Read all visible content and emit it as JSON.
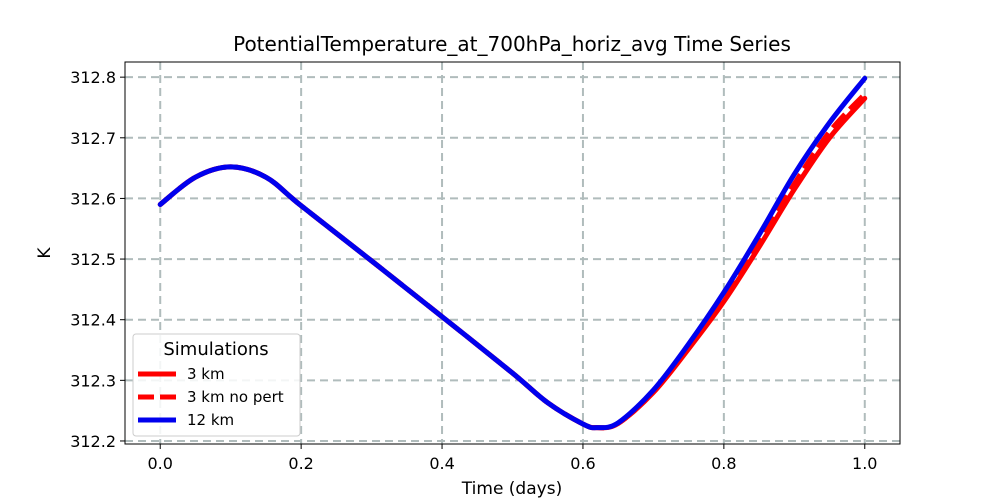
{
  "chart_data": {
    "type": "line",
    "title": "PotentialTemperature_at_700hPa_horiz_avg Time Series",
    "xlabel": "Time (days)",
    "ylabel": "K",
    "xlim": [
      -0.05,
      1.05
    ],
    "ylim": [
      312.195,
      312.825
    ],
    "xticks": [
      0.0,
      0.2,
      0.4,
      0.6,
      0.8,
      1.0
    ],
    "xtick_labels": [
      "0.0",
      "0.2",
      "0.4",
      "0.6",
      "0.8",
      "1.0"
    ],
    "yticks": [
      312.2,
      312.3,
      312.4,
      312.5,
      312.6,
      312.7,
      312.8
    ],
    "ytick_labels": [
      "312.2",
      "312.3",
      "312.4",
      "312.5",
      "312.6",
      "312.7",
      "312.8"
    ],
    "grid": true,
    "legend": {
      "title": "Simulations",
      "position": "lower-left"
    },
    "series": [
      {
        "name": "3 km",
        "color": "#ff0000",
        "style": "solid",
        "x": [
          0.0,
          0.05,
          0.1,
          0.15,
          0.2,
          0.3,
          0.4,
          0.5,
          0.55,
          0.6,
          0.62,
          0.65,
          0.7,
          0.75,
          0.8,
          0.85,
          0.9,
          0.95,
          1.0
        ],
        "y": [
          312.59,
          312.635,
          312.652,
          312.635,
          312.588,
          312.497,
          312.405,
          312.312,
          312.263,
          312.228,
          312.222,
          312.229,
          312.28,
          312.352,
          312.43,
          312.52,
          312.615,
          312.7,
          312.765
        ]
      },
      {
        "name": "3 km no pert",
        "color": "#ff0000",
        "style": "dashed",
        "x": [
          0.0,
          0.05,
          0.1,
          0.15,
          0.2,
          0.3,
          0.4,
          0.5,
          0.55,
          0.6,
          0.62,
          0.65,
          0.7,
          0.75,
          0.8,
          0.85,
          0.9,
          0.95,
          1.0
        ],
        "y": [
          312.59,
          312.635,
          312.652,
          312.635,
          312.588,
          312.497,
          312.405,
          312.312,
          312.263,
          312.228,
          312.222,
          312.229,
          312.281,
          312.354,
          312.435,
          312.527,
          312.624,
          312.71,
          312.772
        ]
      },
      {
        "name": "12 km",
        "color": "#0000ee",
        "style": "solid",
        "x": [
          0.0,
          0.05,
          0.1,
          0.15,
          0.2,
          0.3,
          0.4,
          0.5,
          0.55,
          0.6,
          0.62,
          0.65,
          0.7,
          0.75,
          0.8,
          0.85,
          0.9,
          0.95,
          1.0
        ],
        "y": [
          312.59,
          312.635,
          312.652,
          312.635,
          312.588,
          312.497,
          312.405,
          312.312,
          312.263,
          312.228,
          312.222,
          312.23,
          312.284,
          312.36,
          312.445,
          312.54,
          312.64,
          312.725,
          312.798
        ]
      }
    ]
  }
}
